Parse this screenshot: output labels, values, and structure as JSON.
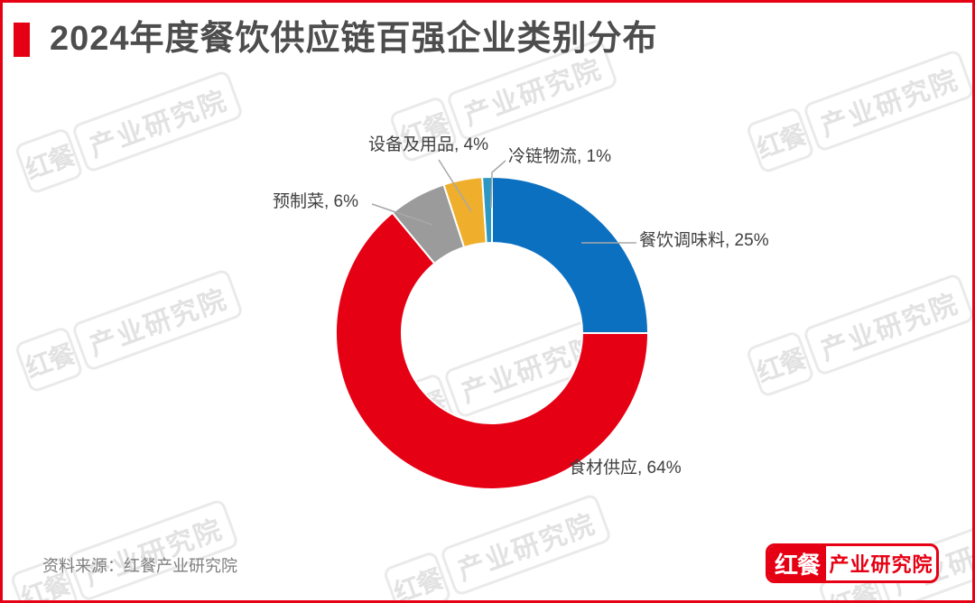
{
  "header": {
    "title": "2024年度餐饮供应链百强企业类别分布",
    "bullet_color": "#E60013",
    "title_color": "#4D4D4D"
  },
  "chart_data": {
    "type": "pie",
    "subtype": "donut",
    "title": "2024年度餐饮供应链百强企业类别分布",
    "categories": [
      "餐饮调味料",
      "食材供应",
      "预制菜",
      "设备及用品",
      "冷链物流"
    ],
    "values": [
      25,
      64,
      6,
      4,
      1
    ],
    "unit": "%",
    "colors": [
      "#0C70C1",
      "#E60014",
      "#9B9B9B",
      "#EFAF2C",
      "#2D98C3"
    ],
    "labels": [
      "餐饮调味料, 25%",
      "食材供应, 64%",
      "预制菜, 6%",
      "设备及用品, 4%",
      "冷链物流, 1%"
    ],
    "ids": [
      "seasoning",
      "food-supply",
      "premade-dishes",
      "equipment-supplies",
      "cold-chain-logistics"
    ],
    "start_angle_deg": 0,
    "direction": "clockwise",
    "donut_hole_ratio": 0.58,
    "slice_border_color": "#FFFFFF",
    "leader_line_color": "#A8A8A8",
    "legend": "none"
  },
  "footer": {
    "source": "资料来源：红餐产业研究院",
    "logo": {
      "left": "红餐",
      "right": "产业研究院"
    }
  },
  "watermark": {
    "left": "红餐",
    "right": "产业研究院"
  }
}
